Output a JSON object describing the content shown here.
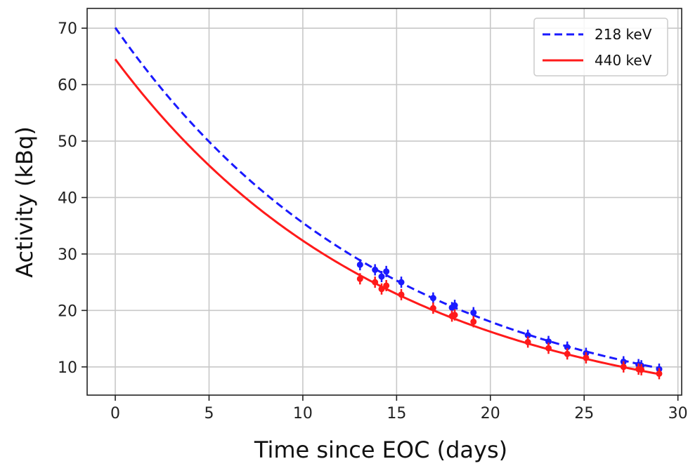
{
  "chart_data": {
    "type": "line",
    "title": "",
    "xlabel": "Time since EOC (days)",
    "ylabel": "Activity (kBq)",
    "xlim": [
      -1.5,
      30.2
    ],
    "ylim": [
      5,
      73.5
    ],
    "xticks": [
      0,
      5,
      10,
      15,
      20,
      25,
      30
    ],
    "yticks": [
      10,
      20,
      30,
      40,
      50,
      60,
      70
    ],
    "grid": true,
    "legend": "top-right",
    "series": [
      {
        "name": "218 keV",
        "color": "#1a1aff",
        "linestyle": "dashed",
        "fit": {
          "A0": 70.1,
          "half_life_days": 10.2,
          "x_range": [
            0,
            29
          ]
        },
        "points": [
          {
            "x": 13.05,
            "y": 28.1
          },
          {
            "x": 13.85,
            "y": 27.2
          },
          {
            "x": 14.2,
            "y": 26.0
          },
          {
            "x": 14.45,
            "y": 26.9
          },
          {
            "x": 15.25,
            "y": 25.0
          },
          {
            "x": 16.95,
            "y": 22.2
          },
          {
            "x": 17.95,
            "y": 20.5
          },
          {
            "x": 18.1,
            "y": 20.9
          },
          {
            "x": 19.1,
            "y": 19.6
          },
          {
            "x": 22.0,
            "y": 15.6
          },
          {
            "x": 23.1,
            "y": 14.5
          },
          {
            "x": 24.1,
            "y": 13.5
          },
          {
            "x": 25.1,
            "y": 12.4
          },
          {
            "x": 27.1,
            "y": 10.9
          },
          {
            "x": 27.9,
            "y": 10.4
          },
          {
            "x": 28.05,
            "y": 10.2
          },
          {
            "x": 29.0,
            "y": 9.6
          }
        ]
      },
      {
        "name": "440 keV",
        "color": "#ff1a1a",
        "linestyle": "solid",
        "fit": {
          "A0": 64.5,
          "half_life_days": 10.05,
          "x_range": [
            0,
            29
          ]
        },
        "points": [
          {
            "x": 13.05,
            "y": 25.6
          },
          {
            "x": 13.85,
            "y": 25.0
          },
          {
            "x": 14.2,
            "y": 23.8
          },
          {
            "x": 14.45,
            "y": 24.4
          },
          {
            "x": 15.25,
            "y": 22.8
          },
          {
            "x": 16.95,
            "y": 20.4
          },
          {
            "x": 17.95,
            "y": 19.0
          },
          {
            "x": 18.1,
            "y": 19.2
          },
          {
            "x": 19.1,
            "y": 18.0
          },
          {
            "x": 22.0,
            "y": 14.4
          },
          {
            "x": 23.1,
            "y": 13.3
          },
          {
            "x": 24.1,
            "y": 12.3
          },
          {
            "x": 25.1,
            "y": 11.6
          },
          {
            "x": 27.1,
            "y": 10.0
          },
          {
            "x": 27.9,
            "y": 9.6
          },
          {
            "x": 28.05,
            "y": 9.5
          },
          {
            "x": 29.0,
            "y": 8.8
          }
        ]
      }
    ]
  }
}
